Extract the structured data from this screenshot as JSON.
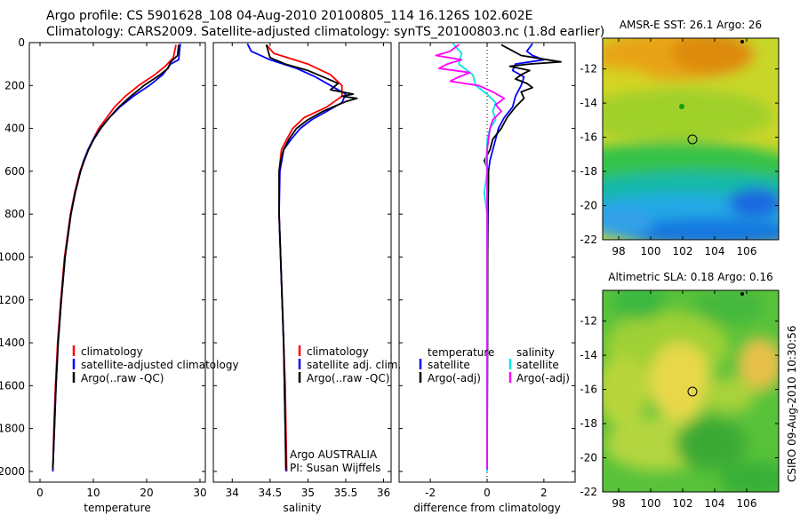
{
  "header": {
    "line1": "Argo profile: CS 5901628_108 04-Aug-2010 20100805_114 16.126S 102.602E",
    "line2": "Climatology: CARS2009. Satellite-adjusted climatology: synTS_20100803.nc (1.8d earlier)"
  },
  "side_label": "CSIRO 09-Aug-2010 10:30:56",
  "colors": {
    "climatology": "#ff0000",
    "satellite": "#0000ff",
    "argo": "#000000",
    "sal_satellite": "#00e5e5",
    "sal_argo": "#ff00ff"
  },
  "chart_data": [
    {
      "type": "line",
      "name": "temperature-profile",
      "xlabel": "temperature",
      "xlim": [
        -2,
        31
      ],
      "xticks": [
        "0",
        "10",
        "20",
        "30"
      ],
      "xtick_values": [
        0,
        10,
        20,
        30
      ],
      "ylim": [
        0,
        2050
      ],
      "yticks": [
        "0",
        "200",
        "400",
        "600",
        "800",
        "1000",
        "1200",
        "1400",
        "1600",
        "1800",
        "2000"
      ],
      "ytick_values": [
        0,
        200,
        400,
        600,
        800,
        1000,
        1200,
        1400,
        1600,
        1800,
        2000
      ],
      "legend": [
        "climatology",
        "satellite-adjusted climatology",
        "Argo(..raw -QC)"
      ],
      "series": [
        {
          "name": "climatology",
          "color": "red",
          "depth": [
            10,
            70,
            110,
            150,
            200,
            250,
            300,
            350,
            400,
            450,
            500,
            550,
            600,
            700,
            800,
            1000,
            1200,
            1400,
            1600,
            1800,
            2000
          ],
          "values": [
            25.5,
            25.0,
            23.5,
            21.5,
            18.5,
            16.0,
            14.0,
            12.5,
            11.0,
            10.0,
            9.0,
            8.2,
            7.5,
            6.5,
            5.7,
            4.6,
            3.9,
            3.3,
            2.9,
            2.6,
            2.4
          ]
        },
        {
          "name": "satellite",
          "color": "blue",
          "depth": [
            5,
            80,
            100,
            150,
            200,
            250,
            300,
            350,
            400,
            450,
            500,
            550,
            600,
            700,
            800,
            1000,
            1200,
            1400,
            1600,
            1800,
            2000
          ],
          "values": [
            26.3,
            26.0,
            24.5,
            23.0,
            20.5,
            17.5,
            15.0,
            13.0,
            11.3,
            10.0,
            9.0,
            8.2,
            7.6,
            6.6,
            5.8,
            4.7,
            4.0,
            3.4,
            3.0,
            2.7,
            2.4
          ]
        },
        {
          "name": "argo",
          "color": "black",
          "depth": [
            10,
            60,
            90,
            120,
            150,
            200,
            250,
            300,
            350,
            400,
            450,
            500,
            550,
            600,
            700,
            800,
            1000,
            1200,
            1400,
            1600,
            1800,
            1990
          ],
          "values": [
            26.0,
            25.8,
            24.5,
            24.0,
            22.5,
            19.5,
            17.0,
            14.8,
            13.0,
            11.4,
            10.1,
            9.1,
            8.3,
            7.6,
            6.6,
            5.8,
            4.7,
            4.0,
            3.4,
            3.0,
            2.7,
            2.4
          ]
        }
      ]
    },
    {
      "type": "line",
      "name": "salinity-profile",
      "xlabel": "salinity",
      "xlim": [
        33.75,
        36.1
      ],
      "xticks": [
        "34",
        "34.5",
        "35",
        "35.5",
        "36"
      ],
      "xtick_values": [
        34,
        34.5,
        35,
        35.5,
        36
      ],
      "ylim": [
        0,
        2050
      ],
      "legend": [
        "climatology",
        "satellite adj. clim.",
        "Argo(..raw -QC)"
      ],
      "annotation": [
        "Argo AUSTRALIA",
        "PI: Susan Wijffels"
      ],
      "series": [
        {
          "name": "climatology",
          "color": "red",
          "depth": [
            10,
            50,
            100,
            150,
            200,
            250,
            300,
            350,
            400,
            450,
            500,
            600,
            800,
            1000,
            1200,
            1400,
            1600,
            1800,
            2000
          ],
          "values": [
            34.45,
            34.55,
            35.0,
            35.3,
            35.45,
            35.45,
            35.25,
            34.95,
            34.8,
            34.72,
            34.65,
            34.62,
            34.62,
            34.64,
            34.66,
            34.68,
            34.7,
            34.71,
            34.72
          ]
        },
        {
          "name": "satellite",
          "color": "blue",
          "depth": [
            5,
            40,
            80,
            120,
            160,
            200,
            240,
            280,
            320,
            360,
            400,
            450,
            500,
            600,
            800,
            1000,
            1200,
            1400,
            1600,
            1800,
            2000
          ],
          "values": [
            34.2,
            34.25,
            34.5,
            34.85,
            35.1,
            35.3,
            35.5,
            35.45,
            35.25,
            35.05,
            34.9,
            34.78,
            34.68,
            34.63,
            34.62,
            34.64,
            34.66,
            34.68,
            34.69,
            34.7,
            34.71
          ]
        },
        {
          "name": "argo",
          "color": "black",
          "depth": [
            10,
            70,
            100,
            130,
            160,
            190,
            220,
            240,
            250,
            260,
            275,
            290,
            320,
            360,
            400,
            450,
            500,
            550,
            600,
            800,
            1000,
            1200,
            1400,
            1600,
            1800,
            1990
          ],
          "values": [
            34.45,
            34.5,
            34.7,
            35.0,
            35.2,
            35.4,
            35.3,
            35.6,
            35.45,
            35.65,
            35.5,
            35.4,
            35.2,
            35.0,
            34.85,
            34.75,
            34.68,
            34.64,
            34.62,
            34.62,
            34.64,
            34.66,
            34.68,
            34.69,
            34.7,
            34.71
          ]
        }
      ]
    },
    {
      "type": "line",
      "name": "difference-from-climatology",
      "xlabel": "difference from climatology",
      "xlim": [
        -3.1,
        3.1
      ],
      "xticks": [
        "-2",
        "0",
        "2"
      ],
      "xtick_values": [
        -2,
        0,
        2
      ],
      "ylim": [
        0,
        2050
      ],
      "legend_left_title": "temperature",
      "legend_left": [
        "satellite",
        "Argo(-adj)"
      ],
      "legend_right_title": "salinity",
      "legend_right": [
        "satellite",
        "Argo(-adj)"
      ],
      "series": [
        {
          "name": "temperature satellite",
          "color": "blue",
          "depth": [
            5,
            40,
            60,
            80,
            100,
            130,
            160,
            200,
            250,
            300,
            350,
            400,
            450,
            500,
            550,
            600,
            800,
            1000,
            1500,
            2000
          ],
          "values": [
            1.6,
            1.4,
            1.6,
            2.0,
            1.0,
            0.9,
            1.3,
            1.2,
            1.0,
            0.9,
            0.6,
            0.4,
            0.3,
            0.2,
            0.1,
            0.05,
            0.03,
            0.02,
            0.01,
            0.0
          ]
        },
        {
          "name": "temperature argo",
          "color": "black",
          "depth": [
            10,
            60,
            90,
            100,
            110,
            130,
            150,
            170,
            190,
            210,
            230,
            260,
            300,
            350,
            400,
            450,
            500,
            550,
            600,
            800,
            1000,
            1500,
            1990
          ],
          "values": [
            0.5,
            1.2,
            2.6,
            1.5,
            0.8,
            1.5,
            1.2,
            1.0,
            1.4,
            1.6,
            1.2,
            1.3,
            1.0,
            0.7,
            0.5,
            0.2,
            0.1,
            -0.1,
            0.05,
            0.02,
            0.02,
            0.01,
            0.0
          ]
        },
        {
          "name": "salinity satellite",
          "color": "cyan",
          "depth": [
            5,
            50,
            100,
            150,
            200,
            240,
            280,
            320,
            360,
            400,
            450,
            500,
            550,
            600,
            700,
            800,
            1000,
            1500,
            2000
          ],
          "values": [
            -1.2,
            -0.9,
            -1.0,
            -0.5,
            -0.4,
            0.0,
            0.3,
            0.2,
            0.3,
            0.1,
            0.0,
            0.0,
            -0.05,
            0.0,
            -0.1,
            0.0,
            0.0,
            0.0,
            0.0
          ]
        },
        {
          "name": "salinity argo",
          "color": "magenta",
          "depth": [
            10,
            40,
            60,
            80,
            100,
            120,
            140,
            160,
            180,
            200,
            230,
            260,
            290,
            320,
            360,
            400,
            450,
            500,
            600,
            800,
            1000,
            1500,
            1990
          ],
          "values": [
            -1.0,
            -1.3,
            -1.8,
            -0.9,
            -1.4,
            -1.7,
            -0.6,
            -1.0,
            -1.3,
            -0.3,
            0.2,
            0.6,
            0.3,
            0.5,
            0.2,
            0.1,
            0.05,
            0.0,
            0.0,
            0.0,
            0.0,
            0.0,
            0.0
          ]
        }
      ]
    },
    {
      "type": "heatmap",
      "name": "sst-map",
      "title": "AMSR-E SST: 26.1 Argo: 26",
      "xlim": [
        97,
        108
      ],
      "ylim": [
        -22,
        -10.2
      ],
      "xticks": [
        "98",
        "100",
        "102",
        "104",
        "106"
      ],
      "xtick_values": [
        98,
        100,
        102,
        104,
        106
      ],
      "yticks": [
        "-12",
        "-14",
        "-16",
        "-18",
        "-20",
        "-22"
      ],
      "ytick_values": [
        -12,
        -14,
        -16,
        -18,
        -20,
        -22
      ],
      "profile_marker": {
        "lon": 102.602,
        "lat": -16.126
      }
    },
    {
      "type": "heatmap",
      "name": "sla-map",
      "title": "Altimetric SLA: 0.18 Argo: 0.16",
      "xlim": [
        97,
        108
      ],
      "ylim": [
        -22,
        -10.2
      ],
      "xticks": [
        "98",
        "100",
        "102",
        "104",
        "106"
      ],
      "xtick_values": [
        98,
        100,
        102,
        104,
        106
      ],
      "yticks": [
        "-12",
        "-14",
        "-16",
        "-18",
        "-20",
        "-22"
      ],
      "ytick_values": [
        -12,
        -14,
        -16,
        -18,
        -20,
        -22
      ],
      "profile_marker": {
        "lon": 102.602,
        "lat": -16.126
      }
    }
  ]
}
